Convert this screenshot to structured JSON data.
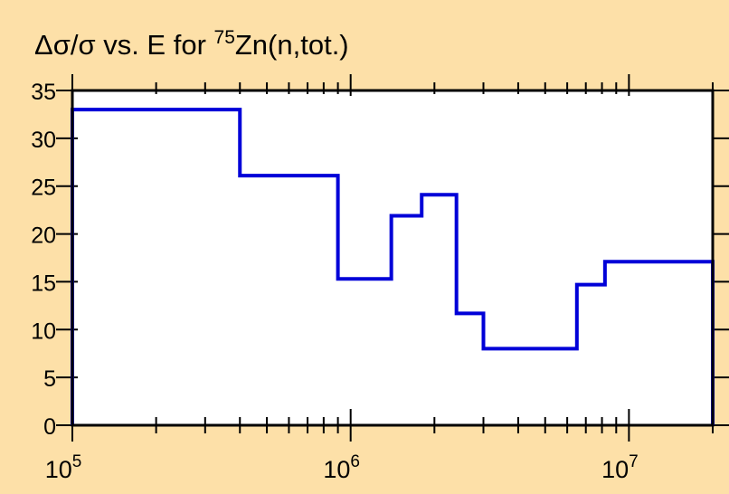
{
  "colors": {
    "background": "#fde0a8",
    "plot_area": "#ffffff",
    "axis": "#000000",
    "series": "#0000d8"
  },
  "title": {
    "prefix": "Δσ/σ vs. E for ",
    "mass_number": "75",
    "rest": "Zn(n,tot.)"
  },
  "chart_data": {
    "type": "line",
    "title": "Δσ/σ vs. E for 75Zn(n,tot.)",
    "xlabel": "",
    "ylabel": "",
    "x_scale": "log",
    "xlim": [
      100000,
      20000000
    ],
    "ylim": [
      0,
      35
    ],
    "grid": false,
    "y_ticks": [
      0,
      5,
      10,
      15,
      20,
      25,
      30,
      35
    ],
    "x_tick_labels": [
      {
        "value": 100000,
        "base": "10",
        "exp": "5"
      },
      {
        "value": 1000000,
        "base": "10",
        "exp": "6"
      },
      {
        "value": 10000000,
        "base": "10",
        "exp": "7"
      }
    ],
    "series": [
      {
        "step": "post",
        "x": [
          100000,
          400000,
          900000,
          1400000,
          1800000,
          2400000,
          3000000,
          4800000,
          6500000,
          8200000,
          20000000
        ],
        "y": [
          33.0,
          26.1,
          15.3,
          21.9,
          24.1,
          11.7,
          8.0,
          8.0,
          14.7,
          17.1,
          17.1
        ]
      }
    ]
  }
}
